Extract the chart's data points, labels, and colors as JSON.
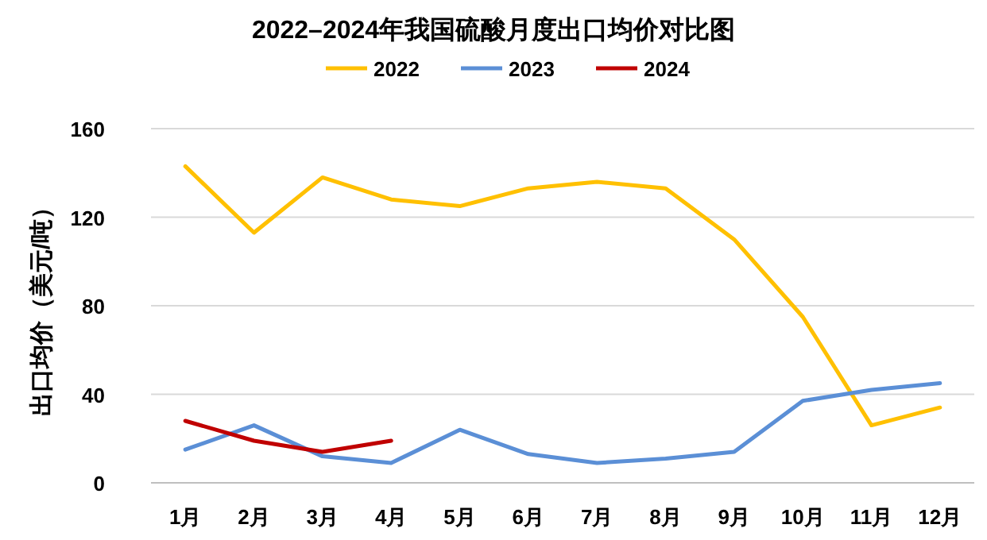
{
  "chart_data": {
    "type": "line",
    "title": "2022–2024年我国硫酸月度出口均价对比图",
    "ylabel": "出口均价（美元/吨）",
    "categories": [
      "1月",
      "2月",
      "3月",
      "4月",
      "5月",
      "6月",
      "7月",
      "8月",
      "9月",
      "10月",
      "11月",
      "12月"
    ],
    "series": [
      {
        "name": "2022",
        "color": "#ffc000",
        "values": [
          143,
          113,
          138,
          128,
          125,
          133,
          136,
          133,
          110,
          75,
          26,
          34
        ]
      },
      {
        "name": "2023",
        "color": "#5b8fd6",
        "values": [
          15,
          26,
          12,
          9,
          24,
          13,
          9,
          11,
          14,
          37,
          42,
          45
        ]
      },
      {
        "name": "2024",
        "color": "#c00000",
        "values": [
          28,
          19,
          14,
          19,
          null,
          null,
          null,
          null,
          null,
          null,
          null,
          null
        ]
      }
    ],
    "ylim": [
      0,
      160
    ],
    "yticks": [
      0,
      40,
      80,
      120,
      160
    ],
    "grid": "y",
    "legend": "top",
    "marker": "none",
    "line_style": "solid"
  }
}
